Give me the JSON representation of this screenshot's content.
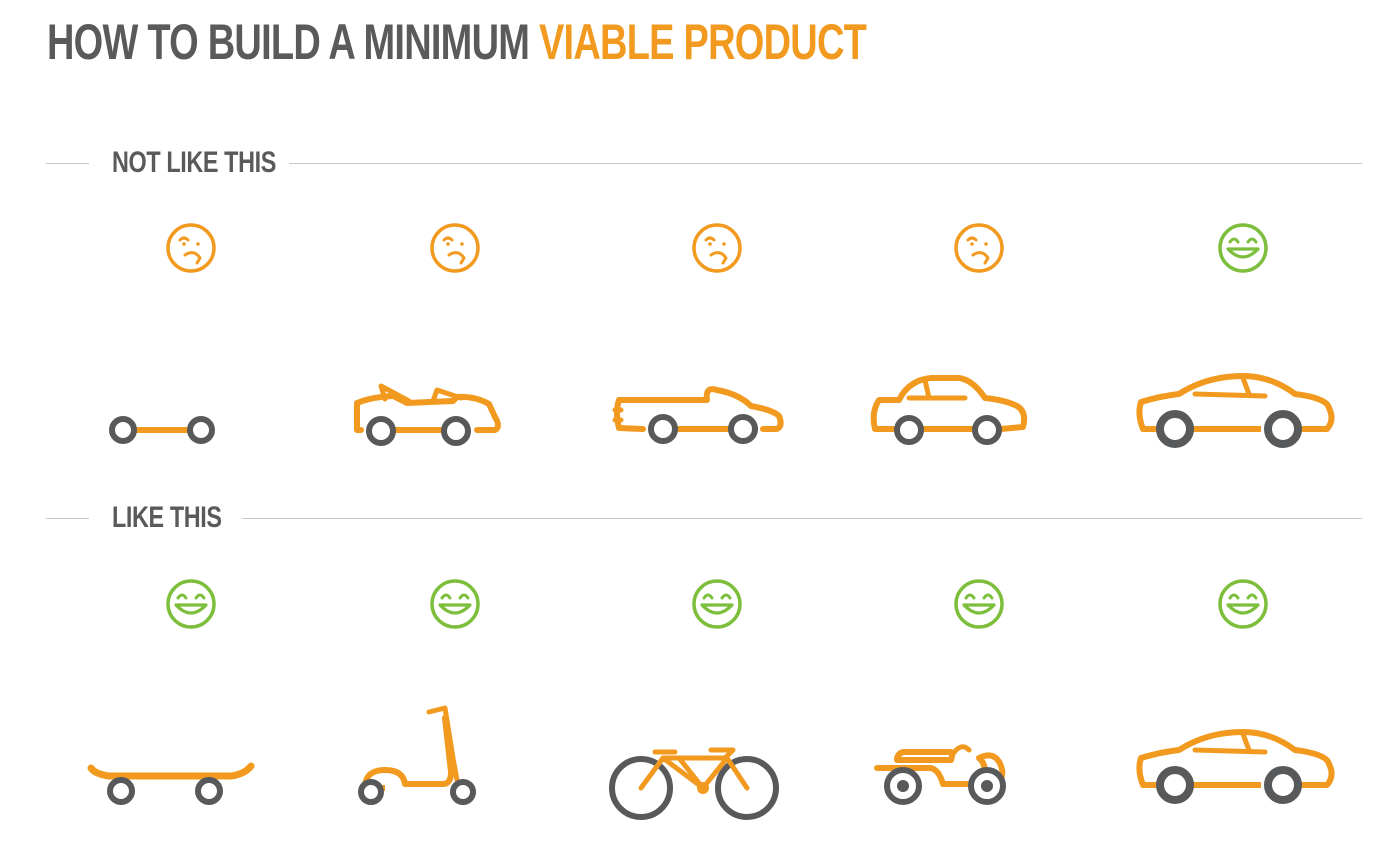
{
  "title": {
    "part1": "HOW TO BUILD A MINIMUM",
    "part2": "VIABLE PRODUCT"
  },
  "colors": {
    "orange": "#f29a1f",
    "green": "#7dbf3c",
    "gray": "#58595b",
    "rule": "#c8c8c8"
  },
  "sections": [
    {
      "label": "NOT LIKE THIS",
      "steps": [
        {
          "face": "sad",
          "vehicle": "wheel-axle"
        },
        {
          "face": "sad",
          "vehicle": "car-chassis-frame"
        },
        {
          "face": "sad",
          "vehicle": "convertible-body"
        },
        {
          "face": "sad",
          "vehicle": "hatchback-car"
        },
        {
          "face": "happy",
          "vehicle": "sedan-car"
        }
      ]
    },
    {
      "label": "LIKE THIS",
      "steps": [
        {
          "face": "happy",
          "vehicle": "skateboard"
        },
        {
          "face": "happy",
          "vehicle": "kick-scooter"
        },
        {
          "face": "happy",
          "vehicle": "bicycle"
        },
        {
          "face": "happy",
          "vehicle": "motorcycle"
        },
        {
          "face": "happy",
          "vehicle": "sedan-car"
        }
      ]
    }
  ]
}
